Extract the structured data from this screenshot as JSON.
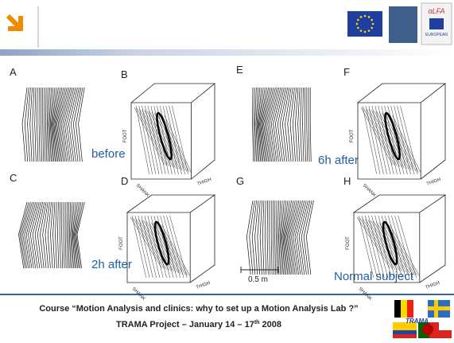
{
  "header": {
    "logos": [
      "αLFA",
      "EUROPEAN"
    ]
  },
  "panels": [
    {
      "letter": "A"
    },
    {
      "letter": "B",
      "axes": [
        "FOOT",
        "SHANK",
        "THIGH"
      ]
    },
    {
      "letter": "E"
    },
    {
      "letter": "F",
      "axes": [
        "FOOT",
        "SHANK",
        "THIGH"
      ]
    },
    {
      "letter": "C"
    },
    {
      "letter": "D",
      "axes": [
        "FOOT",
        "SHANK",
        "THIGH"
      ]
    },
    {
      "letter": "G"
    },
    {
      "letter": "H",
      "axes": [
        "FOOT",
        "SHANK",
        "THIGH"
      ]
    }
  ],
  "conditions": [
    "before",
    "6h after",
    "2h after",
    "Normal subject"
  ],
  "scale_bar": "0.5 m",
  "footer": {
    "line1": "Course “Motion Analysis and clinics: why to set up a Motion Analysis Lab ?”",
    "line2": "TRAMA Project – January 14 – 17",
    "line2_sup": "th",
    "line2_end": " 2008",
    "logo": "TRAMA"
  }
}
